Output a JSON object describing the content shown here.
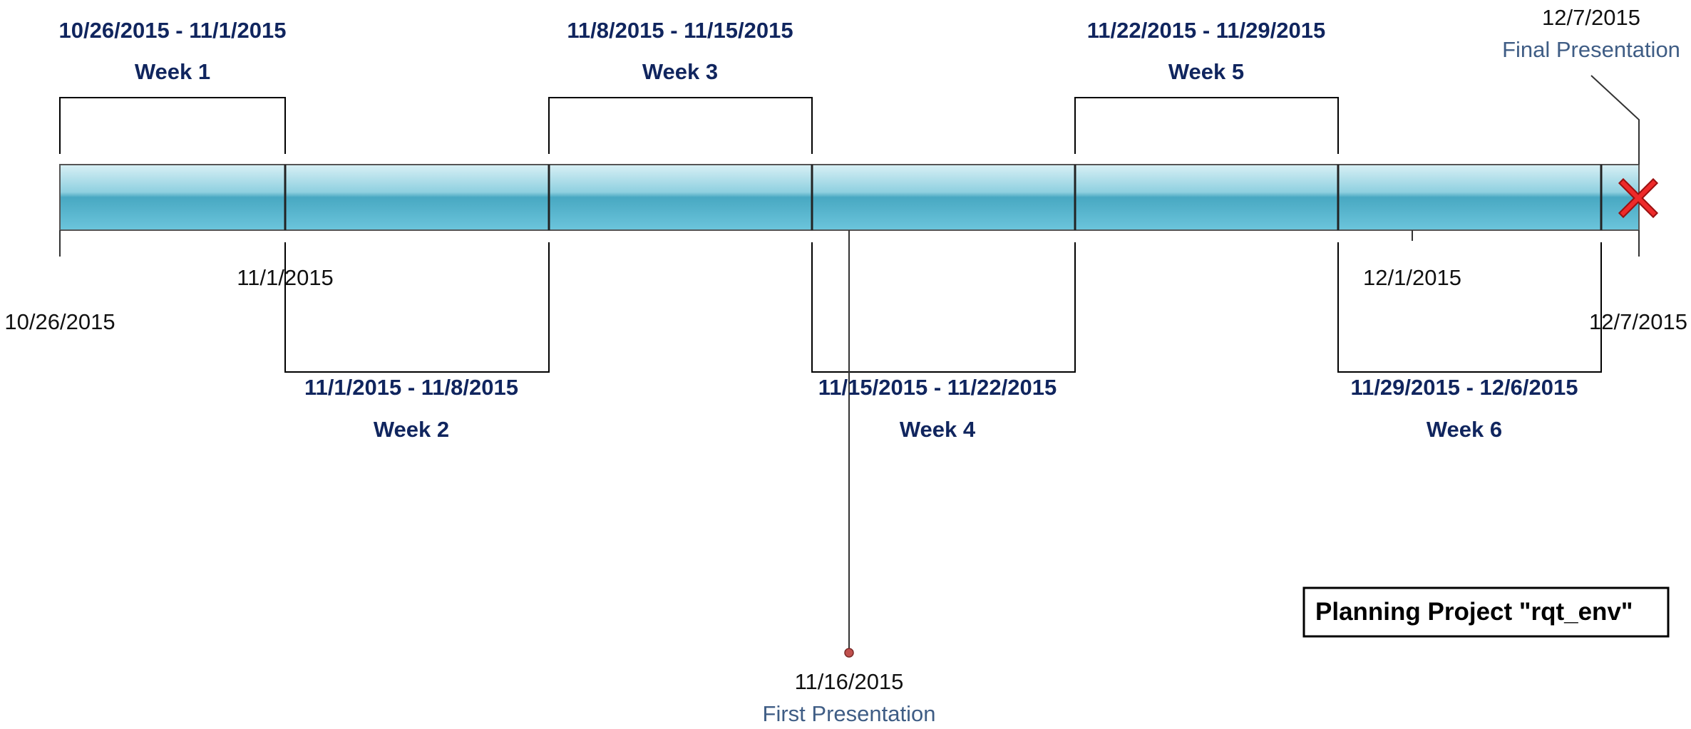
{
  "project": {
    "title": "Planning Project \"rqt_env\""
  },
  "weeks": [
    {
      "name": "Week 1",
      "range": "10/26/2015 - 11/1/2015"
    },
    {
      "name": "Week 2",
      "range": "11/1/2015 - 11/8/2015"
    },
    {
      "name": "Week 3",
      "range": "11/8/2015 - 11/15/2015"
    },
    {
      "name": "Week 4",
      "range": "11/15/2015 - 11/22/2015"
    },
    {
      "name": "Week 5",
      "range": "11/22/2015 - 11/29/2015"
    },
    {
      "name": "Week 6",
      "range": "11/29/2015 - 12/6/2015"
    }
  ],
  "axis_labels": {
    "start": "10/26/2015",
    "nov1": "11/1/2015",
    "dec1": "12/1/2015",
    "end": "12/7/2015"
  },
  "milestones": [
    {
      "date": "11/16/2015",
      "label": "First Presentation",
      "marker": "circle-marker-icon"
    },
    {
      "date": "12/7/2015",
      "label": "Final Presentation",
      "marker": "x-marker-icon"
    }
  ],
  "colors": {
    "bar_top": "#cdeaf1",
    "bar_mid": "#4aaac4",
    "bar_bottom": "#6fc7dd",
    "week_title": "#10255e",
    "milestone_label": "#3f5d85",
    "milestone_dot": "#c0504d",
    "x_marker": "#e02020"
  }
}
